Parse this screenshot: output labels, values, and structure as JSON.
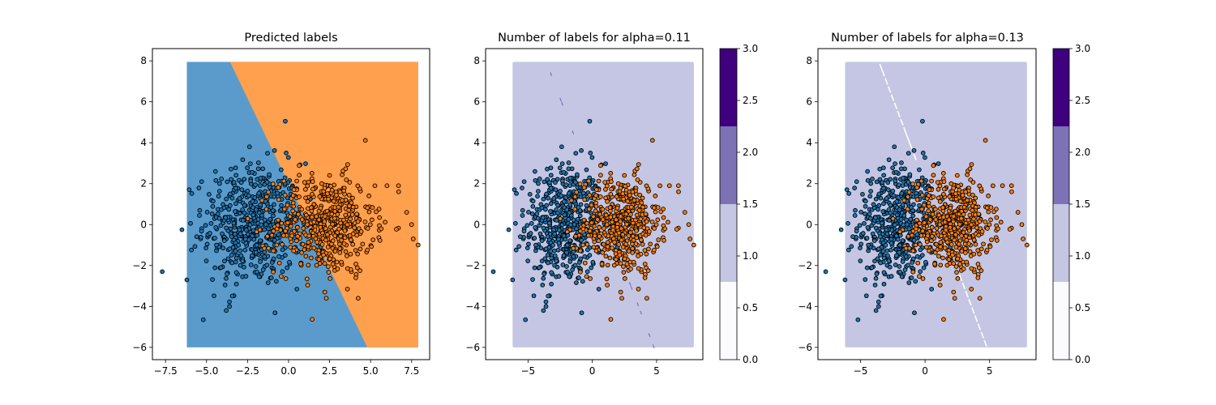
{
  "figure": {
    "background": "#ffffff"
  },
  "chart_data": [
    {
      "type": "scatter",
      "title": "Predicted labels",
      "background_regions": "predicted-class",
      "class_colors": [
        "#5a9bcc",
        "#ffa04f"
      ],
      "point_colors": [
        "#1f77b4",
        "#ff7f0e"
      ],
      "xlim": [
        -8.3,
        8.6
      ],
      "ylim": [
        -6.6,
        8.6
      ],
      "xticks": [
        -7.5,
        -5.0,
        -2.5,
        0.0,
        2.5,
        5.0,
        7.5
      ],
      "xtick_labels": [
        "−7.5",
        "−5.0",
        "−2.5",
        "0.0",
        "2.5",
        "5.0",
        "7.5"
      ],
      "yticks": [
        -6,
        -4,
        -2,
        0,
        2,
        4,
        6,
        8
      ],
      "ytick_labels": [
        "−6",
        "−4",
        "−2",
        "0",
        "2",
        "4",
        "6",
        "8"
      ],
      "grid": false
    },
    {
      "type": "scatter",
      "title": "Number of labels for alpha=0.11",
      "background_regions": "set-size",
      "region_color": "#c5c6e3",
      "xlim": [
        -8.3,
        8.6
      ],
      "ylim": [
        -6.6,
        8.6
      ],
      "xticks": [
        -5,
        0,
        5
      ],
      "xtick_labels": [
        "−5",
        "0",
        "5"
      ],
      "yticks": [
        -6,
        -4,
        -2,
        0,
        2,
        4,
        6,
        8
      ],
      "ytick_labels": [
        "−6",
        "−4",
        "−2",
        "0",
        "2",
        "4",
        "6",
        "8"
      ],
      "boundary_marks": {
        "color": "#7c72b5",
        "style": "sparse"
      },
      "colorbar": {
        "range": [
          0,
          3
        ],
        "ticks": [
          0.0,
          0.5,
          1.0,
          1.5,
          2.0,
          2.5,
          3.0
        ],
        "tick_labels": [
          "0.0",
          "0.5",
          "1.0",
          "1.5",
          "2.0",
          "2.5",
          "3.0"
        ],
        "bands": [
          {
            "from": 0.0,
            "to": 0.75,
            "color": "#fbfbfd"
          },
          {
            "from": 0.75,
            "to": 1.5,
            "color": "#c5c6e3"
          },
          {
            "from": 1.5,
            "to": 2.25,
            "color": "#7c72b5"
          },
          {
            "from": 2.25,
            "to": 3.0,
            "color": "#3f007d"
          }
        ]
      },
      "grid": false
    },
    {
      "type": "scatter",
      "title": "Number of labels for alpha=0.13",
      "background_regions": "set-size",
      "region_color": "#c5c6e3",
      "xlim": [
        -8.3,
        8.6
      ],
      "ylim": [
        -6.6,
        8.6
      ],
      "xticks": [
        -5,
        0,
        5
      ],
      "xtick_labels": [
        "−5",
        "0",
        "5"
      ],
      "yticks": [
        -6,
        -4,
        -2,
        0,
        2,
        4,
        6,
        8
      ],
      "ytick_labels": [
        "−6",
        "−4",
        "−2",
        "0",
        "2",
        "4",
        "6",
        "8"
      ],
      "boundary_marks": {
        "color": "#ffffff",
        "style": "dense"
      },
      "colorbar": {
        "range": [
          0,
          3
        ],
        "ticks": [
          0.0,
          0.5,
          1.0,
          1.5,
          2.0,
          2.5,
          3.0
        ],
        "tick_labels": [
          "0.0",
          "0.5",
          "1.0",
          "1.5",
          "2.0",
          "2.5",
          "3.0"
        ],
        "bands": [
          {
            "from": 0.0,
            "to": 0.75,
            "color": "#fbfbfd"
          },
          {
            "from": 0.75,
            "to": 1.5,
            "color": "#c5c6e3"
          },
          {
            "from": 1.5,
            "to": 2.25,
            "color": "#7c72b5"
          },
          {
            "from": 2.25,
            "to": 3.0,
            "color": "#3f007d"
          }
        ]
      },
      "grid": false
    }
  ],
  "scatter": {
    "grid_extent": {
      "x": [
        -6.2,
        7.9
      ],
      "y": [
        -6.0,
        7.95
      ]
    },
    "boundary": {
      "point": [
        0.6,
        1.0
      ],
      "slope": -1.667
    },
    "clusters": [
      {
        "class": 0,
        "mean": [
          -2.2,
          0.0
        ],
        "std": [
          1.5,
          1.5
        ],
        "n": 500
      },
      {
        "class": 1,
        "mean": [
          2.2,
          0.0
        ],
        "std": [
          1.5,
          1.2
        ],
        "n": 500
      }
    ],
    "outliers": [
      {
        "class": 0,
        "x": -7.7,
        "y": -2.3
      },
      {
        "class": 0,
        "x": -6.5,
        "y": -0.25
      },
      {
        "class": 0,
        "x": -6.2,
        "y": -2.7
      },
      {
        "class": 0,
        "x": -5.2,
        "y": -4.65
      },
      {
        "class": 0,
        "x": -5.3,
        "y": 2.1
      },
      {
        "class": 0,
        "x": -0.2,
        "y": 5.05
      },
      {
        "class": 0,
        "x": -3.6,
        "y": -4.0
      },
      {
        "class": 0,
        "x": -3.8,
        "y": -4.2
      },
      {
        "class": 1,
        "x": 7.9,
        "y": -1.0
      },
      {
        "class": 1,
        "x": 7.6,
        "y": -0.7
      },
      {
        "class": 1,
        "x": 7.5,
        "y": 0.0
      },
      {
        "class": 1,
        "x": 7.2,
        "y": 0.6
      },
      {
        "class": 1,
        "x": 6.7,
        "y": 1.9
      },
      {
        "class": 1,
        "x": 6.0,
        "y": 1.9
      },
      {
        "class": 1,
        "x": 2.3,
        "y": -3.6
      },
      {
        "class": 1,
        "x": 4.1,
        "y": -2.6
      },
      {
        "class": 1,
        "x": 4.9,
        "y": 1.4
      }
    ]
  }
}
